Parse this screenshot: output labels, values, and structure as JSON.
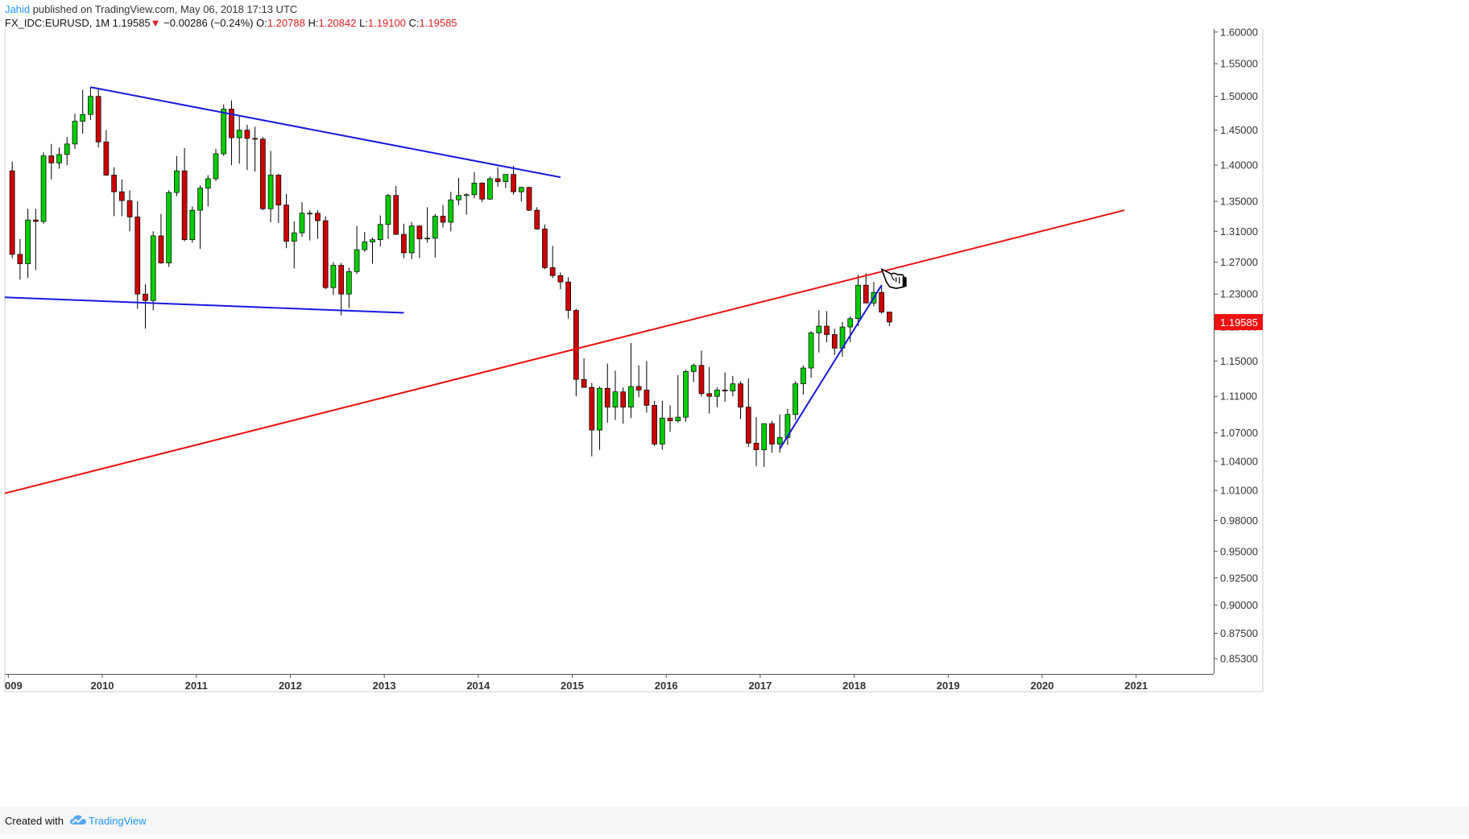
{
  "header": {
    "author": "Jahid",
    "published": "published on TradingView.com, May 06, 2018 17:13 UTC",
    "symbol": "FX_IDC:EURUSD, 1M",
    "last": "1.19585",
    "arrow": "▼",
    "change": "−0.00286 (−0.24%)",
    "o_label": "O:",
    "o_val": "1.20788",
    "h_label": "H:",
    "h_val": "1.20842",
    "l_label": "L:",
    "l_val": "1.19100",
    "c_label": "C:",
    "c_val": "1.19585"
  },
  "footer": {
    "created": "Created with",
    "brand": "TradingView"
  },
  "colors": {
    "up": "#00cc00",
    "down": "#cc0000",
    "trend_blue": "#1818e0",
    "trend_red": "#ee1111",
    "price_tag": "#ee1111"
  },
  "chart_data": {
    "type": "candlestick",
    "symbol": "FX_IDC:EURUSD",
    "interval": "1M",
    "x_tick_labels": [
      "009",
      "2010",
      "2011",
      "2012",
      "2013",
      "2014",
      "2015",
      "2016",
      "2017",
      "2018",
      "2019",
      "2020",
      "2021"
    ],
    "y_tick_labels": [
      "1.60000",
      "1.55000",
      "1.50000",
      "1.45000",
      "1.40000",
      "1.35000",
      "1.31000",
      "1.27000",
      "1.23000",
      "1.19000",
      "1.15000",
      "1.11000",
      "1.07000",
      "1.04000",
      "1.01000",
      "0.98000",
      "0.95000",
      "0.92500",
      "0.90000",
      "0.87500",
      "0.85300"
    ],
    "ylim": [
      0.84,
      1.605
    ],
    "y_scale": "log",
    "last_price_label": "1.19585",
    "candles": [
      {
        "t": "2009-01",
        "o": 1.392,
        "h": 1.405,
        "l": 1.275,
        "c": 1.28
      },
      {
        "t": "2009-02",
        "o": 1.28,
        "h": 1.3,
        "l": 1.248,
        "c": 1.268
      },
      {
        "t": "2009-03",
        "o": 1.268,
        "h": 1.34,
        "l": 1.25,
        "c": 1.325
      },
      {
        "t": "2009-04",
        "o": 1.325,
        "h": 1.34,
        "l": 1.26,
        "c": 1.323
      },
      {
        "t": "2009-05",
        "o": 1.323,
        "h": 1.418,
        "l": 1.32,
        "c": 1.413
      },
      {
        "t": "2009-06",
        "o": 1.413,
        "h": 1.43,
        "l": 1.38,
        "c": 1.403
      },
      {
        "t": "2009-07",
        "o": 1.403,
        "h": 1.425,
        "l": 1.395,
        "c": 1.415
      },
      {
        "t": "2009-08",
        "o": 1.415,
        "h": 1.44,
        "l": 1.4,
        "c": 1.43
      },
      {
        "t": "2009-09",
        "o": 1.43,
        "h": 1.474,
        "l": 1.423,
        "c": 1.463
      },
      {
        "t": "2009-10",
        "o": 1.463,
        "h": 1.51,
        "l": 1.445,
        "c": 1.473
      },
      {
        "t": "2009-11",
        "o": 1.473,
        "h": 1.514,
        "l": 1.465,
        "c": 1.5
      },
      {
        "t": "2009-12",
        "o": 1.5,
        "h": 1.512,
        "l": 1.425,
        "c": 1.433
      },
      {
        "t": "2010-01",
        "o": 1.433,
        "h": 1.45,
        "l": 1.385,
        "c": 1.386
      },
      {
        "t": "2010-02",
        "o": 1.386,
        "h": 1.397,
        "l": 1.33,
        "c": 1.363
      },
      {
        "t": "2010-03",
        "o": 1.363,
        "h": 1.38,
        "l": 1.33,
        "c": 1.351
      },
      {
        "t": "2010-04",
        "o": 1.351,
        "h": 1.365,
        "l": 1.31,
        "c": 1.329
      },
      {
        "t": "2010-05",
        "o": 1.329,
        "h": 1.35,
        "l": 1.212,
        "c": 1.23
      },
      {
        "t": "2010-06",
        "o": 1.23,
        "h": 1.242,
        "l": 1.188,
        "c": 1.222
      },
      {
        "t": "2010-07",
        "o": 1.222,
        "h": 1.31,
        "l": 1.21,
        "c": 1.304
      },
      {
        "t": "2010-08",
        "o": 1.304,
        "h": 1.333,
        "l": 1.268,
        "c": 1.269
      },
      {
        "t": "2010-09",
        "o": 1.269,
        "h": 1.365,
        "l": 1.264,
        "c": 1.362
      },
      {
        "t": "2010-10",
        "o": 1.362,
        "h": 1.413,
        "l": 1.357,
        "c": 1.392
      },
      {
        "t": "2010-11",
        "o": 1.392,
        "h": 1.424,
        "l": 1.297,
        "c": 1.299
      },
      {
        "t": "2010-12",
        "o": 1.299,
        "h": 1.343,
        "l": 1.295,
        "c": 1.338
      },
      {
        "t": "2011-01",
        "o": 1.338,
        "h": 1.372,
        "l": 1.287,
        "c": 1.368
      },
      {
        "t": "2011-02",
        "o": 1.368,
        "h": 1.386,
        "l": 1.343,
        "c": 1.381
      },
      {
        "t": "2011-03",
        "o": 1.381,
        "h": 1.423,
        "l": 1.378,
        "c": 1.416
      },
      {
        "t": "2011-04",
        "o": 1.416,
        "h": 1.488,
        "l": 1.413,
        "c": 1.481
      },
      {
        "t": "2011-05",
        "o": 1.481,
        "h": 1.494,
        "l": 1.4,
        "c": 1.439
      },
      {
        "t": "2011-06",
        "o": 1.439,
        "h": 1.47,
        "l": 1.402,
        "c": 1.45
      },
      {
        "t": "2011-07",
        "o": 1.45,
        "h": 1.458,
        "l": 1.393,
        "c": 1.438
      },
      {
        "t": "2011-08",
        "o": 1.438,
        "h": 1.455,
        "l": 1.391,
        "c": 1.437
      },
      {
        "t": "2011-09",
        "o": 1.437,
        "h": 1.44,
        "l": 1.338,
        "c": 1.34
      },
      {
        "t": "2011-10",
        "o": 1.34,
        "h": 1.42,
        "l": 1.322,
        "c": 1.386
      },
      {
        "t": "2011-11",
        "o": 1.386,
        "h": 1.388,
        "l": 1.321,
        "c": 1.345
      },
      {
        "t": "2011-12",
        "o": 1.345,
        "h": 1.36,
        "l": 1.288,
        "c": 1.297
      },
      {
        "t": "2012-01",
        "o": 1.297,
        "h": 1.323,
        "l": 1.262,
        "c": 1.308
      },
      {
        "t": "2012-02",
        "o": 1.308,
        "h": 1.349,
        "l": 1.303,
        "c": 1.334
      },
      {
        "t": "2012-03",
        "o": 1.334,
        "h": 1.338,
        "l": 1.298,
        "c": 1.334
      },
      {
        "t": "2012-04",
        "o": 1.334,
        "h": 1.338,
        "l": 1.3,
        "c": 1.324
      },
      {
        "t": "2012-05",
        "o": 1.324,
        "h": 1.33,
        "l": 1.236,
        "c": 1.238
      },
      {
        "t": "2012-06",
        "o": 1.238,
        "h": 1.27,
        "l": 1.229,
        "c": 1.266
      },
      {
        "t": "2012-07",
        "o": 1.266,
        "h": 1.269,
        "l": 1.204,
        "c": 1.23
      },
      {
        "t": "2012-08",
        "o": 1.23,
        "h": 1.263,
        "l": 1.213,
        "c": 1.258
      },
      {
        "t": "2012-09",
        "o": 1.258,
        "h": 1.317,
        "l": 1.255,
        "c": 1.286
      },
      {
        "t": "2012-10",
        "o": 1.286,
        "h": 1.309,
        "l": 1.283,
        "c": 1.296
      },
      {
        "t": "2012-11",
        "o": 1.296,
        "h": 1.302,
        "l": 1.268,
        "c": 1.299
      },
      {
        "t": "2012-12",
        "o": 1.299,
        "h": 1.331,
        "l": 1.29,
        "c": 1.319
      },
      {
        "t": "2013-01",
        "o": 1.319,
        "h": 1.36,
        "l": 1.3,
        "c": 1.358
      },
      {
        "t": "2013-02",
        "o": 1.358,
        "h": 1.371,
        "l": 1.305,
        "c": 1.306
      },
      {
        "t": "2013-03",
        "o": 1.306,
        "h": 1.32,
        "l": 1.275,
        "c": 1.282
      },
      {
        "t": "2013-04",
        "o": 1.282,
        "h": 1.322,
        "l": 1.274,
        "c": 1.317
      },
      {
        "t": "2013-05",
        "o": 1.317,
        "h": 1.318,
        "l": 1.275,
        "c": 1.3
      },
      {
        "t": "2013-06",
        "o": 1.3,
        "h": 1.342,
        "l": 1.295,
        "c": 1.301
      },
      {
        "t": "2013-07",
        "o": 1.301,
        "h": 1.333,
        "l": 1.276,
        "c": 1.33
      },
      {
        "t": "2013-08",
        "o": 1.33,
        "h": 1.345,
        "l": 1.315,
        "c": 1.322
      },
      {
        "t": "2013-09",
        "o": 1.322,
        "h": 1.363,
        "l": 1.31,
        "c": 1.352
      },
      {
        "t": "2013-10",
        "o": 1.352,
        "h": 1.382,
        "l": 1.345,
        "c": 1.358
      },
      {
        "t": "2013-11",
        "o": 1.358,
        "h": 1.361,
        "l": 1.332,
        "c": 1.359
      },
      {
        "t": "2013-12",
        "o": 1.359,
        "h": 1.39,
        "l": 1.354,
        "c": 1.375
      },
      {
        "t": "2014-01",
        "o": 1.375,
        "h": 1.376,
        "l": 1.349,
        "c": 1.353
      },
      {
        "t": "2014-02",
        "o": 1.353,
        "h": 1.384,
        "l": 1.352,
        "c": 1.381
      },
      {
        "t": "2014-03",
        "o": 1.381,
        "h": 1.397,
        "l": 1.37,
        "c": 1.377
      },
      {
        "t": "2014-04",
        "o": 1.377,
        "h": 1.387,
        "l": 1.368,
        "c": 1.387
      },
      {
        "t": "2014-05",
        "o": 1.387,
        "h": 1.399,
        "l": 1.359,
        "c": 1.363
      },
      {
        "t": "2014-06",
        "o": 1.363,
        "h": 1.37,
        "l": 1.35,
        "c": 1.369
      },
      {
        "t": "2014-07",
        "o": 1.369,
        "h": 1.37,
        "l": 1.337,
        "c": 1.338
      },
      {
        "t": "2014-08",
        "o": 1.338,
        "h": 1.342,
        "l": 1.312,
        "c": 1.313
      },
      {
        "t": "2014-09",
        "o": 1.313,
        "h": 1.319,
        "l": 1.261,
        "c": 1.263
      },
      {
        "t": "2014-10",
        "o": 1.263,
        "h": 1.291,
        "l": 1.25,
        "c": 1.253
      },
      {
        "t": "2014-11",
        "o": 1.253,
        "h": 1.257,
        "l": 1.236,
        "c": 1.245
      },
      {
        "t": "2014-12",
        "o": 1.245,
        "h": 1.251,
        "l": 1.2,
        "c": 1.21
      },
      {
        "t": "2015-01",
        "o": 1.21,
        "h": 1.212,
        "l": 1.11,
        "c": 1.129
      },
      {
        "t": "2015-02",
        "o": 1.129,
        "h": 1.153,
        "l": 1.121,
        "c": 1.12
      },
      {
        "t": "2015-03",
        "o": 1.12,
        "h": 1.125,
        "l": 1.045,
        "c": 1.073
      },
      {
        "t": "2015-04",
        "o": 1.073,
        "h": 1.121,
        "l": 1.052,
        "c": 1.119
      },
      {
        "t": "2015-05",
        "o": 1.119,
        "h": 1.147,
        "l": 1.081,
        "c": 1.098
      },
      {
        "t": "2015-06",
        "o": 1.098,
        "h": 1.139,
        "l": 1.084,
        "c": 1.115
      },
      {
        "t": "2015-07",
        "o": 1.115,
        "h": 1.12,
        "l": 1.08,
        "c": 1.098
      },
      {
        "t": "2015-08",
        "o": 1.098,
        "h": 1.171,
        "l": 1.086,
        "c": 1.121
      },
      {
        "t": "2015-09",
        "o": 1.121,
        "h": 1.145,
        "l": 1.109,
        "c": 1.117
      },
      {
        "t": "2015-10",
        "o": 1.117,
        "h": 1.15,
        "l": 1.092,
        "c": 1.1
      },
      {
        "t": "2015-11",
        "o": 1.1,
        "h": 1.105,
        "l": 1.056,
        "c": 1.058
      },
      {
        "t": "2015-12",
        "o": 1.058,
        "h": 1.105,
        "l": 1.052,
        "c": 1.086
      },
      {
        "t": "2016-01",
        "o": 1.086,
        "h": 1.1,
        "l": 1.071,
        "c": 1.083
      },
      {
        "t": "2016-02",
        "o": 1.083,
        "h": 1.134,
        "l": 1.081,
        "c": 1.087
      },
      {
        "t": "2016-03",
        "o": 1.087,
        "h": 1.14,
        "l": 1.082,
        "c": 1.138
      },
      {
        "t": "2016-04",
        "o": 1.138,
        "h": 1.147,
        "l": 1.126,
        "c": 1.145
      },
      {
        "t": "2016-05",
        "o": 1.145,
        "h": 1.162,
        "l": 1.11,
        "c": 1.113
      },
      {
        "t": "2016-06",
        "o": 1.113,
        "h": 1.143,
        "l": 1.091,
        "c": 1.11
      },
      {
        "t": "2016-07",
        "o": 1.11,
        "h": 1.12,
        "l": 1.098,
        "c": 1.117
      },
      {
        "t": "2016-08",
        "o": 1.117,
        "h": 1.137,
        "l": 1.104,
        "c": 1.116
      },
      {
        "t": "2016-09",
        "o": 1.116,
        "h": 1.133,
        "l": 1.11,
        "c": 1.124
      },
      {
        "t": "2016-10",
        "o": 1.124,
        "h": 1.127,
        "l": 1.085,
        "c": 1.098
      },
      {
        "t": "2016-11",
        "o": 1.098,
        "h": 1.13,
        "l": 1.055,
        "c": 1.059
      },
      {
        "t": "2016-12",
        "o": 1.059,
        "h": 1.087,
        "l": 1.035,
        "c": 1.052
      },
      {
        "t": "2017-01",
        "o": 1.052,
        "h": 1.08,
        "l": 1.034,
        "c": 1.08
      },
      {
        "t": "2017-02",
        "o": 1.08,
        "h": 1.083,
        "l": 1.049,
        "c": 1.058
      },
      {
        "t": "2017-03",
        "o": 1.058,
        "h": 1.09,
        "l": 1.049,
        "c": 1.065
      },
      {
        "t": "2017-04",
        "o": 1.065,
        "h": 1.096,
        "l": 1.057,
        "c": 1.09
      },
      {
        "t": "2017-05",
        "o": 1.09,
        "h": 1.127,
        "l": 1.084,
        "c": 1.124
      },
      {
        "t": "2017-06",
        "o": 1.124,
        "h": 1.145,
        "l": 1.112,
        "c": 1.142
      },
      {
        "t": "2017-07",
        "o": 1.142,
        "h": 1.185,
        "l": 1.131,
        "c": 1.183
      },
      {
        "t": "2017-08",
        "o": 1.183,
        "h": 1.21,
        "l": 1.16,
        "c": 1.191
      },
      {
        "t": "2017-09",
        "o": 1.191,
        "h": 1.209,
        "l": 1.172,
        "c": 1.181
      },
      {
        "t": "2017-10",
        "o": 1.181,
        "h": 1.188,
        "l": 1.157,
        "c": 1.165
      },
      {
        "t": "2017-11",
        "o": 1.165,
        "h": 1.196,
        "l": 1.155,
        "c": 1.19
      },
      {
        "t": "2017-12",
        "o": 1.19,
        "h": 1.203,
        "l": 1.172,
        "c": 1.2
      },
      {
        "t": "2018-01",
        "o": 1.2,
        "h": 1.254,
        "l": 1.191,
        "c": 1.241
      },
      {
        "t": "2018-02",
        "o": 1.241,
        "h": 1.256,
        "l": 1.219,
        "c": 1.219
      },
      {
        "t": "2018-03",
        "o": 1.219,
        "h": 1.245,
        "l": 1.215,
        "c": 1.232
      },
      {
        "t": "2018-04",
        "o": 1.232,
        "h": 1.241,
        "l": 1.206,
        "c": 1.208
      },
      {
        "t": "2018-05",
        "o": 1.208,
        "h": 1.208,
        "l": 1.191,
        "c": 1.196
      }
    ],
    "drawings": [
      {
        "type": "trendline",
        "color": "blue",
        "from": {
          "t": "2009-11",
          "p": 1.514
        },
        "to": {
          "t": "2014-11",
          "p": 1.383
        }
      },
      {
        "type": "trendline",
        "color": "blue",
        "from": {
          "t": "2008-12",
          "p": 1.226
        },
        "to": {
          "t": "2013-03",
          "p": 1.207
        }
      },
      {
        "type": "trendline",
        "color": "blue",
        "from": {
          "t": "2017-03",
          "p": 1.053
        },
        "to": {
          "t": "2018-04",
          "p": 1.241
        }
      },
      {
        "type": "trendline",
        "color": "red",
        "from": {
          "t": "2008-12",
          "p": 1.007
        },
        "to": {
          "t": "2020-11",
          "p": 1.338
        }
      }
    ],
    "annotations": [
      {
        "type": "pointing-hand-icon",
        "t": "2018-04",
        "p": 1.245
      }
    ]
  }
}
